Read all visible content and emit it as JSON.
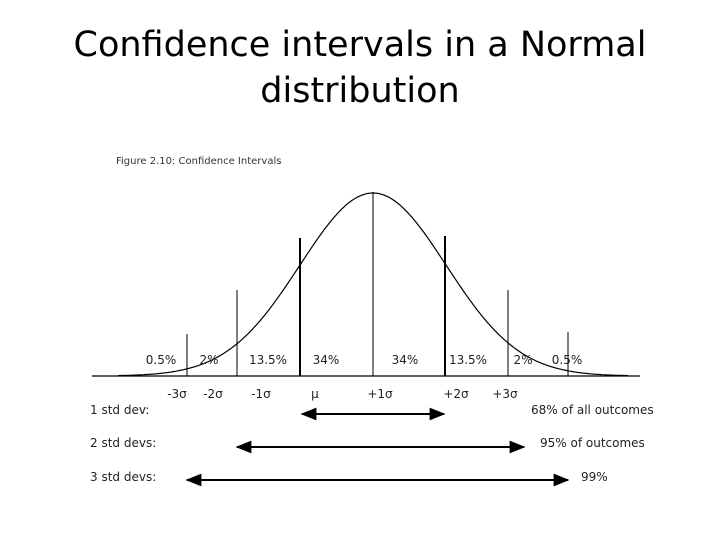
{
  "slide": {
    "title_line1": "Confidence intervals in a Normal",
    "title_line2": "distribution"
  },
  "figure": {
    "caption": "Figure 2.10: Confidence Intervals",
    "percentages": [
      "0.5%",
      "2%",
      "13.5%",
      "34%",
      "34%",
      "13.5%",
      "2%",
      "0.5%"
    ],
    "sigma_labels": [
      "-3σ",
      "-2σ",
      "-1σ",
      "μ",
      "+1σ",
      "+2σ",
      "+3σ"
    ],
    "ranges": [
      {
        "label": "1 std dev:",
        "result": "68% of all outcomes"
      },
      {
        "label": "2 std devs:",
        "result": "95% of outcomes"
      },
      {
        "label": "3 std devs:",
        "result": "99%"
      }
    ]
  }
}
